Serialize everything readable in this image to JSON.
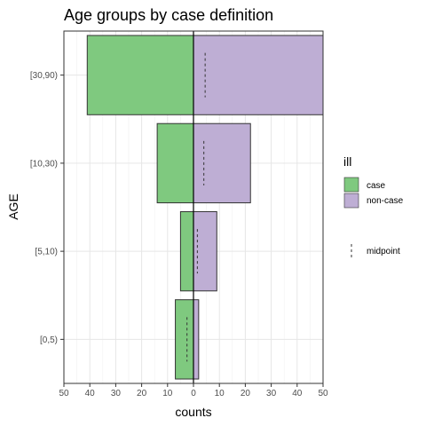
{
  "chart_data": {
    "type": "bar",
    "orientation": "horizontal",
    "title": "Age groups by case definition",
    "xlabel": "counts",
    "ylabel": "AGE",
    "xlim": [
      -50,
      50
    ],
    "xticks": [
      -50,
      -40,
      -30,
      -20,
      -10,
      0,
      10,
      20,
      30,
      40,
      50
    ],
    "xtick_labels": [
      "50",
      "40",
      "30",
      "20",
      "10",
      "0",
      "10",
      "20",
      "30",
      "40",
      "50"
    ],
    "categories": [
      "[0,5)",
      "[5,10)",
      "[10,30)",
      "[30,90)"
    ],
    "series": [
      {
        "name": "case",
        "values": [
          7,
          5,
          14,
          41
        ],
        "color": "#7fc97f",
        "side": "left"
      },
      {
        "name": "non-case",
        "values": [
          2,
          9,
          22,
          50
        ],
        "color": "#beaed4",
        "side": "right"
      }
    ],
    "midpoint": [
      -2.5,
      1.5,
      4,
      4.5
    ],
    "legend": {
      "title": "ill",
      "position": "right",
      "items": [
        "case",
        "non-case"
      ],
      "midpoint_label": "midpoint"
    },
    "grid": true
  }
}
